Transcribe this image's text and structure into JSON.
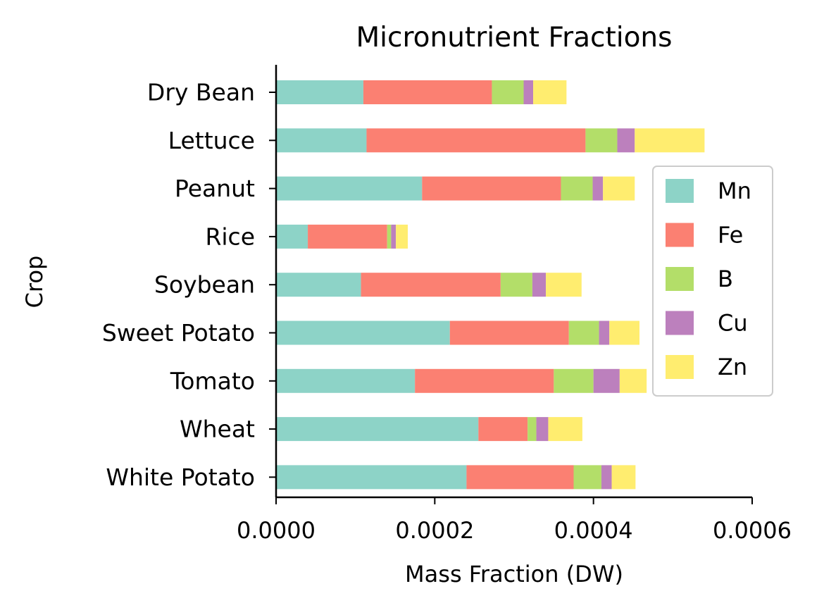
{
  "chart_data": {
    "type": "bar",
    "orientation": "horizontal",
    "stacked": true,
    "title": "Micronutrient Fractions",
    "xlabel": "Mass Fraction (DW)",
    "ylabel": "Crop",
    "xlim": [
      0,
      0.0006
    ],
    "xticks": [
      0,
      0.0002,
      0.0004,
      0.0006
    ],
    "xtick_labels": [
      "0.0000",
      "0.0002",
      "0.0004",
      "0.0006"
    ],
    "grid": false,
    "legend_position": "center-right",
    "categories": [
      "Dry Bean",
      "Lettuce",
      "Peanut",
      "Rice",
      "Soybean",
      "Sweet Potato",
      "Tomato",
      "Wheat",
      "White Potato"
    ],
    "series": [
      {
        "name": "Mn",
        "color": "#8dd3c7",
        "values": [
          0.00011,
          0.000114,
          0.000184,
          4e-05,
          0.000107,
          0.000219,
          0.000175,
          0.000255,
          0.00024
        ]
      },
      {
        "name": "Fe",
        "color": "#fb8072",
        "values": [
          0.000162,
          0.000276,
          0.000175,
          0.0001,
          0.000176,
          0.00015,
          0.000175,
          6.2e-05,
          0.000135
        ]
      },
      {
        "name": "B",
        "color": "#b3de69",
        "values": [
          4e-05,
          4e-05,
          4e-05,
          5e-06,
          4e-05,
          3.8e-05,
          5e-05,
          1.1e-05,
          3.5e-05
        ]
      },
      {
        "name": "Cu",
        "color": "#bc80bd",
        "values": [
          1.2e-05,
          2.2e-05,
          1.3e-05,
          6e-06,
          1.7e-05,
          1.3e-05,
          3.3e-05,
          1.5e-05,
          1.3e-05
        ]
      },
      {
        "name": "Zn",
        "color": "#ffed6f",
        "values": [
          4.2e-05,
          8.8e-05,
          4e-05,
          1.5e-05,
          4.5e-05,
          3.8e-05,
          3.4e-05,
          4.3e-05,
          3e-05
        ]
      }
    ]
  }
}
